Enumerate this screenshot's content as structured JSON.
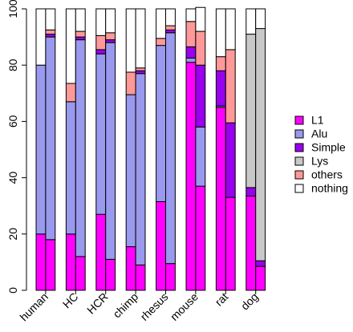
{
  "chart_data": {
    "type": "bar",
    "stacked": true,
    "percent": true,
    "ylim": [
      0,
      100
    ],
    "y_ticks": [
      "0",
      "20",
      "40",
      "60",
      "80",
      "100"
    ],
    "grid": false,
    "legend_position": "right",
    "categories": [
      "human",
      "HC",
      "HCR",
      "chimp",
      "rhesus",
      "mouse",
      "rat",
      "dog"
    ],
    "bars_per_category": 2,
    "series": [
      {
        "name": "L1",
        "color": "#FF00FF",
        "values": [
          [
            20,
            18
          ],
          [
            20,
            12
          ],
          [
            27,
            11
          ],
          [
            15.5,
            9
          ],
          [
            31.5,
            9.5
          ],
          [
            81,
            37
          ],
          [
            65,
            33
          ],
          [
            33.5,
            8.5
          ]
        ]
      },
      {
        "name": "Alu",
        "color": "#9999EE",
        "values": [
          [
            60,
            72
          ],
          [
            47,
            77
          ],
          [
            57,
            77
          ],
          [
            54,
            68
          ],
          [
            55.5,
            82
          ],
          [
            1.5,
            21
          ],
          [
            0.5,
            0
          ],
          [
            0,
            0
          ]
        ]
      },
      {
        "name": "Simple",
        "color": "#9900EE",
        "values": [
          [
            0,
            1
          ],
          [
            0,
            1
          ],
          [
            1.5,
            1
          ],
          [
            0,
            1
          ],
          [
            0,
            1
          ],
          [
            4,
            22
          ],
          [
            12.5,
            26.5
          ],
          [
            3,
            2
          ]
        ]
      },
      {
        "name": "Lys",
        "color": "#C8C8C8",
        "values": [
          [
            0,
            0
          ],
          [
            0,
            0
          ],
          [
            0,
            0
          ],
          [
            0,
            0
          ],
          [
            0,
            0
          ],
          [
            0,
            0
          ],
          [
            0,
            0
          ],
          [
            54.5,
            82.5
          ]
        ]
      },
      {
        "name": "others",
        "color": "#FF9999",
        "values": [
          [
            0,
            1.5
          ],
          [
            6.5,
            2
          ],
          [
            5,
            2.5
          ],
          [
            8,
            1
          ],
          [
            2.5,
            1.5
          ],
          [
            9,
            12
          ],
          [
            5,
            26
          ],
          [
            0,
            0
          ]
        ]
      },
      {
        "name": "nothing",
        "color": "#FFFFFF",
        "values": [
          [
            20,
            7.5
          ],
          [
            26.5,
            8
          ],
          [
            9.5,
            8.5
          ],
          [
            22.5,
            21
          ],
          [
            10.5,
            6
          ],
          [
            4.5,
            8.5
          ],
          [
            17,
            14.5
          ],
          [
            9,
            7
          ]
        ]
      }
    ]
  }
}
